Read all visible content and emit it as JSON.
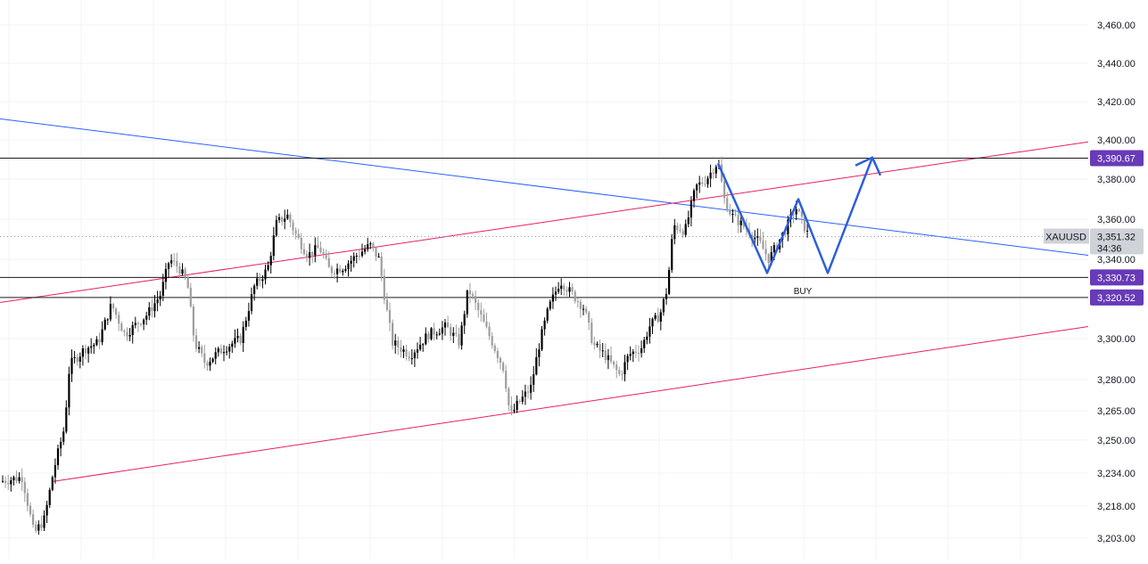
{
  "symbol": "XAUUSD",
  "countdown": "34:36",
  "annotation": "BUY",
  "colors": {
    "grid": "#f0f3fa",
    "candle_black": "#000000",
    "candle_gray": "#9e9e9e",
    "trendline_blue": "#2962ff",
    "channel_red": "#e91e63",
    "pattern_blue": "#2e5fd8",
    "level_line": "#1a1a1a",
    "level_tag": "#673ab7",
    "price_tag": "#cfd2d9",
    "axis_text": "#131722"
  },
  "chart_data": {
    "type": "candlestick",
    "instrument": "XAUUSD",
    "y_ticks": [
      {
        "value": 3460,
        "label": "3,460.00"
      },
      {
        "value": 3440,
        "label": "3,440.00"
      },
      {
        "value": 3420,
        "label": "3,420.00"
      },
      {
        "value": 3400,
        "label": "3,400.00"
      },
      {
        "value": 3380,
        "label": "3,380.00"
      },
      {
        "value": 3360,
        "label": "3,360.00"
      },
      {
        "value": 3340,
        "label": "3,340.00"
      },
      {
        "value": 3300,
        "label": "3,300.00"
      },
      {
        "value": 3280,
        "label": "3,280.00"
      },
      {
        "value": 3265,
        "label": "3,265.00"
      },
      {
        "value": 3250,
        "label": "3,250.00"
      },
      {
        "value": 3234,
        "label": "3,234.00"
      },
      {
        "value": 3218,
        "label": "3,218.00"
      },
      {
        "value": 3203,
        "label": "3,203.00"
      }
    ],
    "current_price": {
      "value": 3351.32,
      "label": "3,351.32"
    },
    "horizontal_levels": [
      {
        "value": 3390.67,
        "label": "3,390.67"
      },
      {
        "value": 3330.73,
        "label": "3,330.73"
      },
      {
        "value": 3320.52,
        "label": "3,320.52"
      }
    ],
    "price_path": [
      [
        0,
        3230
      ],
      [
        25,
        3232
      ],
      [
        38,
        3205
      ],
      [
        50,
        3212
      ],
      [
        60,
        3235
      ],
      [
        72,
        3256
      ],
      [
        78,
        3287
      ],
      [
        95,
        3295
      ],
      [
        110,
        3298
      ],
      [
        125,
        3317
      ],
      [
        140,
        3302
      ],
      [
        150,
        3306
      ],
      [
        165,
        3312
      ],
      [
        180,
        3322
      ],
      [
        190,
        3340
      ],
      [
        200,
        3336
      ],
      [
        210,
        3328
      ],
      [
        218,
        3298
      ],
      [
        230,
        3288
      ],
      [
        250,
        3295
      ],
      [
        270,
        3300
      ],
      [
        285,
        3326
      ],
      [
        300,
        3335
      ],
      [
        310,
        3358
      ],
      [
        322,
        3362
      ],
      [
        332,
        3352
      ],
      [
        345,
        3342
      ],
      [
        358,
        3346
      ],
      [
        370,
        3334
      ],
      [
        385,
        3336
      ],
      [
        400,
        3342
      ],
      [
        415,
        3347
      ],
      [
        425,
        3340
      ],
      [
        432,
        3318
      ],
      [
        440,
        3298
      ],
      [
        460,
        3292
      ],
      [
        480,
        3302
      ],
      [
        500,
        3306
      ],
      [
        515,
        3298
      ],
      [
        525,
        3325
      ],
      [
        540,
        3310
      ],
      [
        555,
        3295
      ],
      [
        565,
        3285
      ],
      [
        572,
        3262
      ],
      [
        580,
        3268
      ],
      [
        595,
        3276
      ],
      [
        605,
        3298
      ],
      [
        615,
        3315
      ],
      [
        628,
        3329
      ],
      [
        642,
        3322
      ],
      [
        655,
        3315
      ],
      [
        665,
        3297
      ],
      [
        678,
        3292
      ],
      [
        695,
        3282
      ],
      [
        705,
        3292
      ],
      [
        720,
        3296
      ],
      [
        728,
        3306
      ],
      [
        740,
        3312
      ],
      [
        748,
        3325
      ],
      [
        755,
        3357
      ],
      [
        768,
        3354
      ],
      [
        780,
        3376
      ],
      [
        792,
        3380
      ],
      [
        805,
        3389
      ],
      [
        812,
        3370
      ],
      [
        820,
        3362
      ],
      [
        830,
        3358
      ],
      [
        840,
        3354
      ],
      [
        852,
        3348
      ],
      [
        862,
        3340
      ],
      [
        872,
        3348
      ],
      [
        882,
        3356
      ],
      [
        892,
        3366
      ],
      [
        900,
        3358
      ],
      [
        908,
        3350
      ]
    ],
    "trendline": {
      "from": [
        0,
        3411
      ],
      "to": [
        1220,
        3342
      ]
    },
    "channel_upper": {
      "from": [
        0,
        3318
      ],
      "to": [
        1220,
        3399
      ]
    },
    "channel_lower": {
      "from": [
        60,
        3230
      ],
      "to": [
        1220,
        3306
      ]
    },
    "projection_path": [
      [
        805,
        3388
      ],
      [
        860,
        3333
      ],
      [
        895,
        3370
      ],
      [
        928,
        3333
      ],
      [
        978,
        3391
      ]
    ],
    "annotation_at": [
      900,
      3324
    ]
  }
}
